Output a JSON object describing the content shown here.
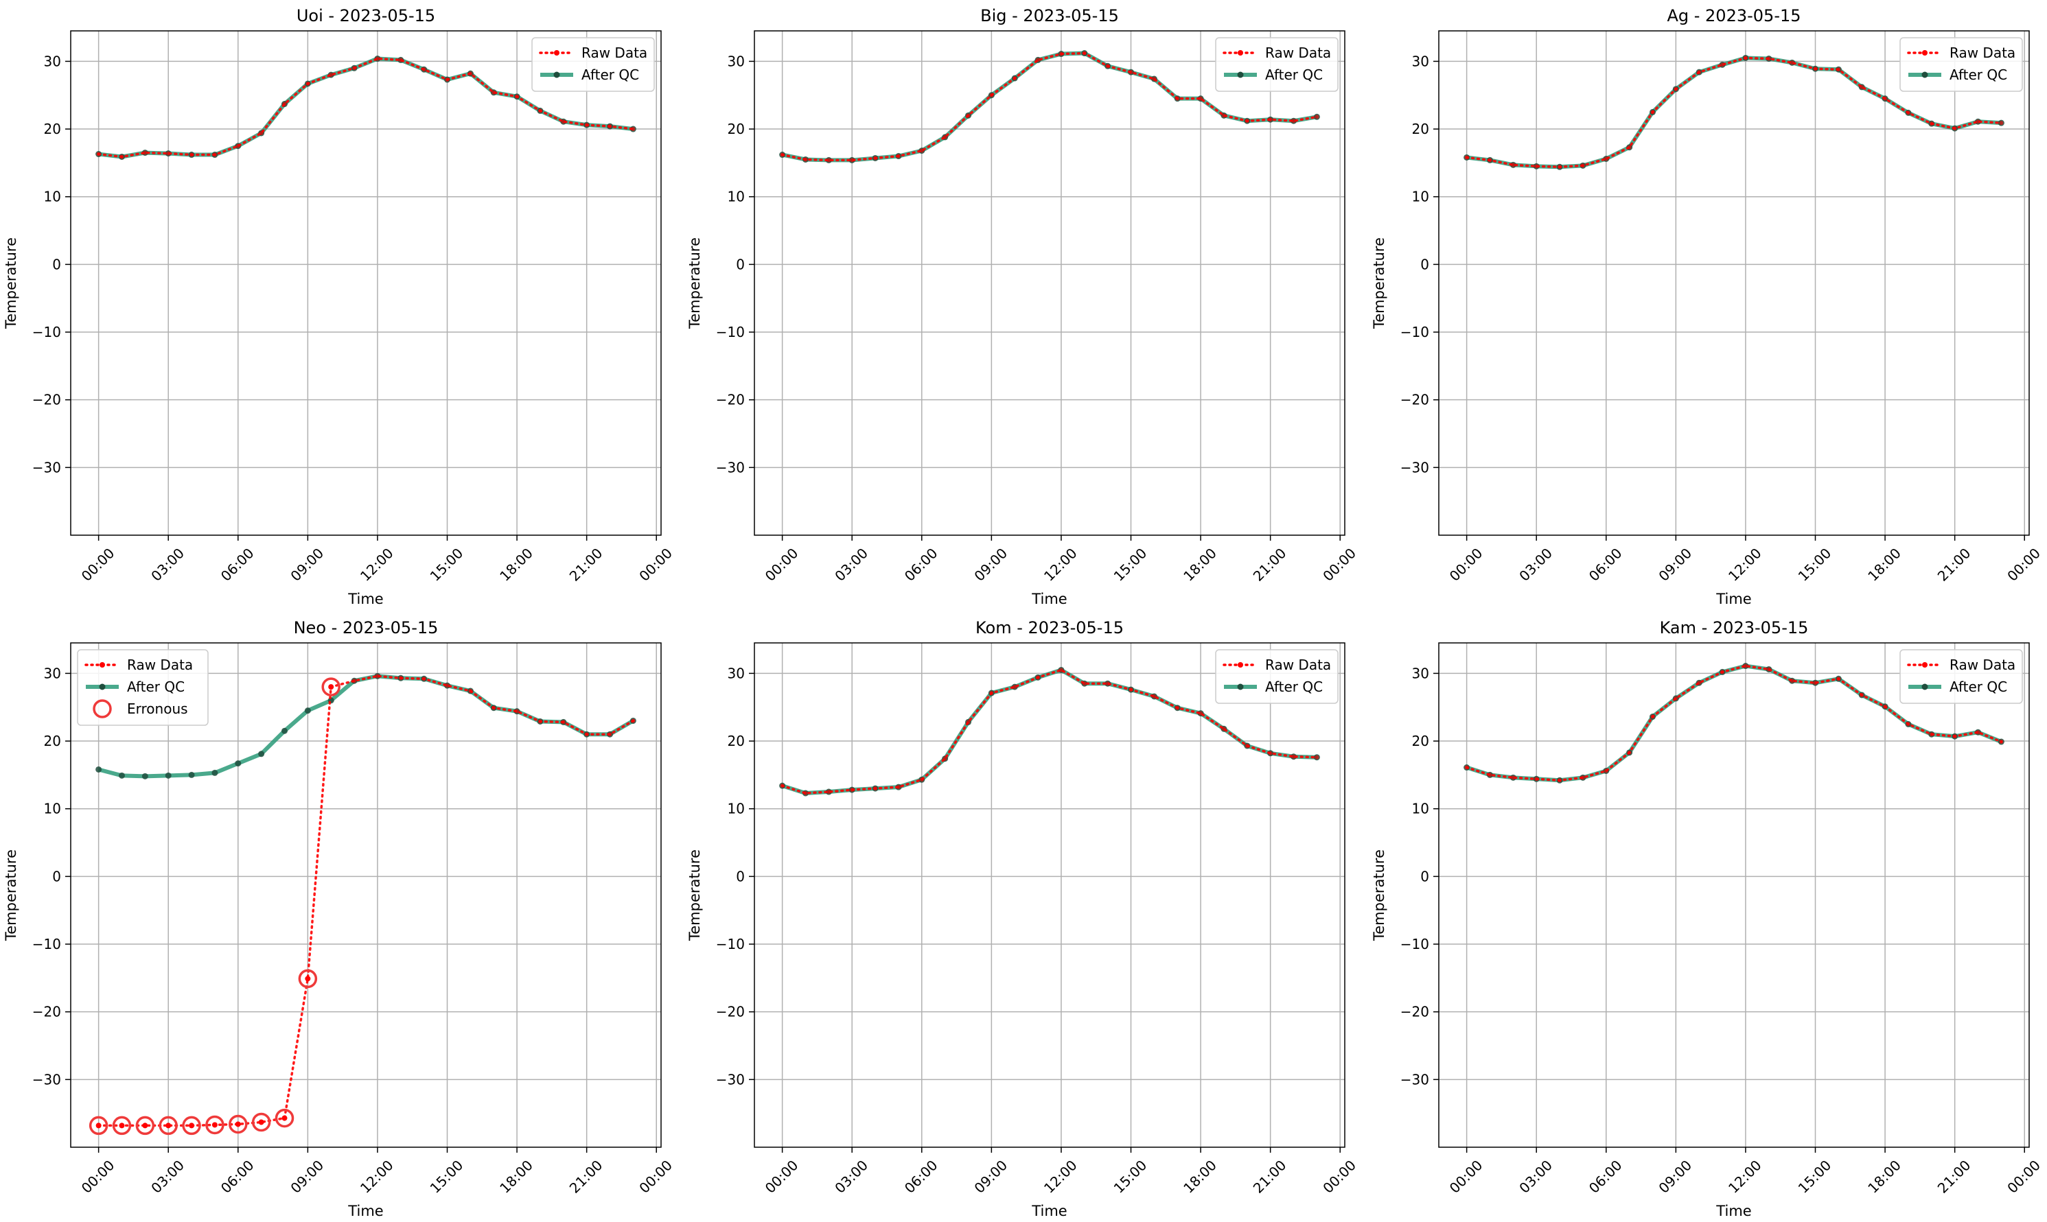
{
  "colors": {
    "raw": "#ff0000",
    "after_qc": "#2a9a78",
    "marker": "#1f4e3d",
    "erroneous": "#ef3a3a",
    "grid": "#b0b0b0",
    "axis": "#000000"
  },
  "chart_data": [
    {
      "type": "line",
      "title": "Uoi - 2023-05-15",
      "xlabel": "Time",
      "ylabel": "Temperature",
      "xticks": [
        "00:00",
        "03:00",
        "06:00",
        "09:00",
        "12:00",
        "15:00",
        "18:00",
        "21:00",
        "00:00"
      ],
      "yticks": [
        -30,
        -20,
        -10,
        0,
        10,
        20,
        30
      ],
      "xlim": [
        -1.2,
        24.2
      ],
      "ylim": [
        -40,
        34.5
      ],
      "grid": true,
      "legend": {
        "position": "top-right",
        "entries": [
          "Raw Data",
          "After QC"
        ]
      },
      "x": [
        0,
        1,
        2,
        3,
        4,
        5,
        6,
        7,
        8,
        9,
        10,
        11,
        12,
        13,
        14,
        15,
        16,
        17,
        18,
        19,
        20,
        21,
        22,
        23
      ],
      "series": [
        {
          "name": "Raw Data",
          "values": [
            16.3,
            15.9,
            16.5,
            16.4,
            16.2,
            16.2,
            17.5,
            19.4,
            23.7,
            26.7,
            28.0,
            29.0,
            30.4,
            30.2,
            28.8,
            27.3,
            28.2,
            25.4,
            24.8,
            22.7,
            21.1,
            20.6,
            20.4,
            20.0
          ]
        },
        {
          "name": "After QC",
          "values": [
            16.3,
            15.9,
            16.5,
            16.4,
            16.2,
            16.2,
            17.5,
            19.4,
            23.7,
            26.7,
            28.0,
            29.0,
            30.4,
            30.2,
            28.8,
            27.3,
            28.2,
            25.4,
            24.8,
            22.7,
            21.1,
            20.6,
            20.4,
            20.0
          ]
        }
      ],
      "erroneous": []
    },
    {
      "type": "line",
      "title": "Big - 2023-05-15",
      "xlabel": "Time",
      "ylabel": "Temperature",
      "xticks": [
        "00:00",
        "03:00",
        "06:00",
        "09:00",
        "12:00",
        "15:00",
        "18:00",
        "21:00",
        "00:00"
      ],
      "yticks": [
        -30,
        -20,
        -10,
        0,
        10,
        20,
        30
      ],
      "xlim": [
        -1.2,
        24.2
      ],
      "ylim": [
        -40,
        34.5
      ],
      "grid": true,
      "legend": {
        "position": "top-right",
        "entries": [
          "Raw Data",
          "After QC"
        ]
      },
      "x": [
        0,
        1,
        2,
        3,
        4,
        5,
        6,
        7,
        8,
        9,
        10,
        11,
        12,
        13,
        14,
        15,
        16,
        17,
        18,
        19,
        20,
        21,
        22,
        23
      ],
      "series": [
        {
          "name": "Raw Data",
          "values": [
            16.2,
            15.5,
            15.4,
            15.4,
            15.7,
            16.0,
            16.8,
            18.8,
            22.0,
            25.0,
            27.5,
            30.2,
            31.1,
            31.2,
            29.3,
            28.4,
            27.4,
            24.5,
            24.5,
            22.0,
            21.2,
            21.4,
            21.2,
            21.8
          ]
        },
        {
          "name": "After QC",
          "values": [
            16.2,
            15.5,
            15.4,
            15.4,
            15.7,
            16.0,
            16.8,
            18.8,
            22.0,
            25.0,
            27.5,
            30.2,
            31.1,
            31.2,
            29.3,
            28.4,
            27.4,
            24.5,
            24.5,
            22.0,
            21.2,
            21.4,
            21.2,
            21.8
          ]
        }
      ],
      "erroneous": []
    },
    {
      "type": "line",
      "title": "Ag - 2023-05-15",
      "xlabel": "Time",
      "ylabel": "Temperature",
      "xticks": [
        "00:00",
        "03:00",
        "06:00",
        "09:00",
        "12:00",
        "15:00",
        "18:00",
        "21:00",
        "00:00"
      ],
      "yticks": [
        -30,
        -20,
        -10,
        0,
        10,
        20,
        30
      ],
      "xlim": [
        -1.2,
        24.2
      ],
      "ylim": [
        -40,
        34.5
      ],
      "grid": true,
      "legend": {
        "position": "top-right",
        "entries": [
          "Raw Data",
          "After QC"
        ]
      },
      "x": [
        0,
        1,
        2,
        3,
        4,
        5,
        6,
        7,
        8,
        9,
        10,
        11,
        12,
        13,
        14,
        15,
        16,
        17,
        18,
        19,
        20,
        21,
        22,
        23
      ],
      "series": [
        {
          "name": "Raw Data",
          "values": [
            15.8,
            15.4,
            14.7,
            14.5,
            14.4,
            14.6,
            15.6,
            17.3,
            22.5,
            25.9,
            28.4,
            29.5,
            30.5,
            30.4,
            29.8,
            28.9,
            28.8,
            26.2,
            24.5,
            22.4,
            20.8,
            20.1,
            21.1,
            20.9
          ]
        },
        {
          "name": "After QC",
          "values": [
            15.8,
            15.4,
            14.7,
            14.5,
            14.4,
            14.6,
            15.6,
            17.3,
            22.5,
            25.9,
            28.4,
            29.5,
            30.5,
            30.4,
            29.8,
            28.9,
            28.8,
            26.2,
            24.5,
            22.4,
            20.8,
            20.1,
            21.1,
            20.9
          ]
        }
      ],
      "erroneous": []
    },
    {
      "type": "line",
      "title": "Neo - 2023-05-15",
      "xlabel": "Time",
      "ylabel": "Temperature",
      "xticks": [
        "00:00",
        "03:00",
        "06:00",
        "09:00",
        "12:00",
        "15:00",
        "18:00",
        "21:00",
        "00:00"
      ],
      "yticks": [
        -30,
        -20,
        -10,
        0,
        10,
        20,
        30
      ],
      "xlim": [
        -1.2,
        24.2
      ],
      "ylim": [
        -40,
        34.5
      ],
      "grid": true,
      "legend": {
        "position": "top-left",
        "entries": [
          "Raw Data",
          "After QC",
          "Erronous"
        ]
      },
      "x": [
        0,
        1,
        2,
        3,
        4,
        5,
        6,
        7,
        8,
        9,
        10,
        11,
        12,
        13,
        14,
        15,
        16,
        17,
        18,
        19,
        20,
        21,
        22,
        23
      ],
      "series": [
        {
          "name": "Raw Data",
          "values": [
            -36.8,
            -36.8,
            -36.8,
            -36.8,
            -36.8,
            -36.7,
            -36.6,
            -36.3,
            -35.7,
            -15.1,
            28.0,
            28.9,
            29.6,
            29.3,
            29.2,
            28.2,
            27.4,
            24.9,
            24.4,
            22.9,
            22.8,
            21.0,
            21.0,
            23.0
          ]
        },
        {
          "name": "After QC",
          "values": [
            15.8,
            14.9,
            14.8,
            14.9,
            15.0,
            15.3,
            16.7,
            18.1,
            21.5,
            24.5,
            26.0,
            28.9,
            29.6,
            29.3,
            29.2,
            28.2,
            27.4,
            24.9,
            24.4,
            22.9,
            22.8,
            21.0,
            21.0,
            23.0
          ]
        }
      ],
      "erroneous": [
        {
          "x": 0,
          "y": -36.8
        },
        {
          "x": 1,
          "y": -36.8
        },
        {
          "x": 2,
          "y": -36.8
        },
        {
          "x": 3,
          "y": -36.8
        },
        {
          "x": 4,
          "y": -36.8
        },
        {
          "x": 5,
          "y": -36.7
        },
        {
          "x": 6,
          "y": -36.6
        },
        {
          "x": 7,
          "y": -36.3
        },
        {
          "x": 8,
          "y": -35.7
        },
        {
          "x": 9,
          "y": -15.1
        },
        {
          "x": 10,
          "y": 28.0
        }
      ]
    },
    {
      "type": "line",
      "title": "Kom - 2023-05-15",
      "xlabel": "Time",
      "ylabel": "Temperature",
      "xticks": [
        "00:00",
        "03:00",
        "06:00",
        "09:00",
        "12:00",
        "15:00",
        "18:00",
        "21:00",
        "00:00"
      ],
      "yticks": [
        -30,
        -20,
        -10,
        0,
        10,
        20,
        30
      ],
      "xlim": [
        -1.2,
        24.2
      ],
      "ylim": [
        -40,
        34.5
      ],
      "grid": true,
      "legend": {
        "position": "top-right",
        "entries": [
          "Raw Data",
          "After QC"
        ]
      },
      "x": [
        0,
        1,
        2,
        3,
        4,
        5,
        6,
        7,
        8,
        9,
        10,
        11,
        12,
        13,
        14,
        15,
        16,
        17,
        18,
        19,
        20,
        21,
        22,
        23
      ],
      "series": [
        {
          "name": "Raw Data",
          "values": [
            13.4,
            12.3,
            12.5,
            12.8,
            13.0,
            13.2,
            14.3,
            17.4,
            22.8,
            27.1,
            28.0,
            29.4,
            30.5,
            28.5,
            28.5,
            27.6,
            26.6,
            24.9,
            24.1,
            21.8,
            19.3,
            18.2,
            17.7,
            17.6
          ]
        },
        {
          "name": "After QC",
          "values": [
            13.4,
            12.3,
            12.5,
            12.8,
            13.0,
            13.2,
            14.3,
            17.4,
            22.8,
            27.1,
            28.0,
            29.4,
            30.5,
            28.5,
            28.5,
            27.6,
            26.6,
            24.9,
            24.1,
            21.8,
            19.3,
            18.2,
            17.7,
            17.6
          ]
        }
      ],
      "erroneous": []
    },
    {
      "type": "line",
      "title": "Kam - 2023-05-15",
      "xlabel": "Time",
      "ylabel": "Temperature",
      "xticks": [
        "00:00",
        "03:00",
        "06:00",
        "09:00",
        "12:00",
        "15:00",
        "18:00",
        "21:00",
        "00:00"
      ],
      "yticks": [
        -30,
        -20,
        -10,
        0,
        10,
        20,
        30
      ],
      "xlim": [
        -1.2,
        24.2
      ],
      "ylim": [
        -40,
        34.5
      ],
      "grid": true,
      "legend": {
        "position": "top-right",
        "entries": [
          "Raw Data",
          "After QC"
        ]
      },
      "x": [
        0,
        1,
        2,
        3,
        4,
        5,
        6,
        7,
        8,
        9,
        10,
        11,
        12,
        13,
        14,
        15,
        16,
        17,
        18,
        19,
        20,
        21,
        22,
        23
      ],
      "series": [
        {
          "name": "Raw Data",
          "values": [
            16.1,
            15.0,
            14.6,
            14.4,
            14.2,
            14.6,
            15.6,
            18.3,
            23.6,
            26.3,
            28.6,
            30.2,
            31.1,
            30.6,
            28.9,
            28.6,
            29.2,
            26.8,
            25.1,
            22.5,
            21.0,
            20.7,
            21.3,
            19.9
          ]
        },
        {
          "name": "After QC",
          "values": [
            16.1,
            15.0,
            14.6,
            14.4,
            14.2,
            14.6,
            15.6,
            18.3,
            23.6,
            26.3,
            28.6,
            30.2,
            31.1,
            30.6,
            28.9,
            28.6,
            29.2,
            26.8,
            25.1,
            22.5,
            21.0,
            20.7,
            21.3,
            19.9
          ]
        }
      ],
      "erroneous": []
    }
  ]
}
